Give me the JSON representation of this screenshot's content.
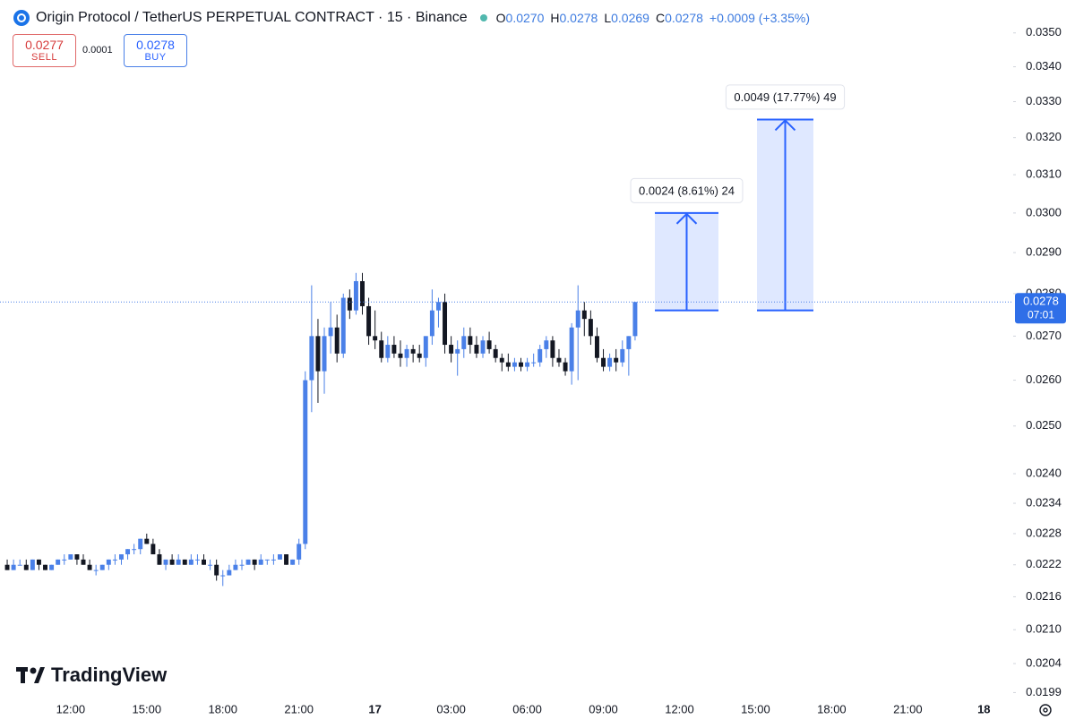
{
  "chart_data": {
    "type": "candlestick",
    "title": "Origin Protocol / TetherUS PERPETUAL CONTRACT · 15 · Binance",
    "legend": [
      {
        "key": "O",
        "value": "0.0270"
      },
      {
        "key": "H",
        "value": "0.0278"
      },
      {
        "key": "L",
        "value": "0.0269"
      },
      {
        "key": "C",
        "value": "0.0278"
      }
    ],
    "change": "+0.0009 (+3.35%)",
    "trade": {
      "sell_price": "0.0277",
      "sell_label": "SELL",
      "spread": "0.0001",
      "buy_price": "0.0278",
      "buy_label": "BUY"
    },
    "watermark": "TradingView",
    "log_scale": true,
    "grid": false,
    "up_color": "#4a80e8",
    "down_color": "#131722",
    "categories": [
      null,
      null,
      null,
      null,
      null,
      null,
      null,
      null,
      null,
      null,
      "12:00",
      null,
      null,
      null,
      null,
      null,
      null,
      null,
      null,
      null,
      null,
      null,
      "15:00",
      null,
      null,
      null,
      null,
      null,
      null,
      null,
      null,
      null,
      null,
      null,
      "18:00",
      null,
      null,
      null,
      null,
      null,
      null,
      null,
      null,
      null,
      null,
      null,
      "21:00",
      null,
      null,
      null,
      null,
      null,
      null,
      null,
      null,
      null,
      null,
      null,
      "17",
      null,
      null,
      null,
      null,
      null,
      null,
      null,
      null,
      null,
      null,
      null,
      "03:00",
      null,
      null,
      null,
      null,
      null,
      null,
      null,
      null,
      null,
      null,
      null,
      "06:00",
      null,
      null,
      null,
      null,
      null,
      null,
      null,
      null,
      null,
      null,
      null,
      "09:00",
      null,
      null,
      null,
      null,
      null,
      null,
      null,
      null,
      null,
      null,
      null,
      "12:00",
      null,
      null,
      null,
      null,
      null,
      null,
      null,
      null,
      null,
      null,
      null,
      "15:00",
      null,
      null,
      null,
      null,
      null,
      null,
      null,
      null,
      null,
      null,
      null,
      "18:00",
      null,
      null,
      null,
      null,
      null,
      null,
      null,
      null,
      null,
      null,
      null,
      "21:00",
      null,
      null,
      null,
      null,
      null,
      null,
      null,
      null,
      null,
      null,
      null,
      "18",
      null,
      null,
      null
    ],
    "open": [
      0.0222,
      0.0221,
      0.0222,
      0.0222,
      0.0221,
      0.0223,
      0.0222,
      0.0221,
      0.0222,
      0.0223,
      0.0223,
      0.0224,
      0.0223,
      0.0222,
      0.0221,
      0.0221,
      0.0222,
      0.0223,
      0.0223,
      0.0224,
      0.0225,
      0.0225,
      0.0227,
      0.0226,
      0.0224,
      0.0222,
      0.0223,
      0.0222,
      0.0223,
      0.0222,
      0.0223,
      0.0223,
      0.0222,
      0.0222,
      0.022,
      0.022,
      0.0221,
      0.0222,
      0.0222,
      0.0223,
      0.0222,
      0.0223,
      0.0223,
      0.0223,
      0.0224,
      0.0222,
      0.0223,
      0.0226,
      0.026,
      0.027,
      0.0262,
      0.027,
      0.0272,
      0.0266,
      0.0279,
      0.0276,
      0.0283,
      0.0277,
      0.027,
      0.0269,
      0.0265,
      0.0268,
      0.0266,
      0.0265,
      0.0267,
      0.0266,
      0.0265,
      0.027,
      0.0276,
      0.0278,
      0.0268,
      0.0266,
      0.0267,
      0.027,
      0.0268,
      0.0266,
      0.0269,
      0.0267,
      0.0265,
      0.0264,
      0.0263,
      0.0264,
      0.0263,
      0.0264,
      0.0264,
      0.0267,
      0.0269,
      0.0265,
      0.0264,
      0.0262,
      0.0272,
      0.0276,
      0.0274,
      0.027,
      0.0265,
      0.0263,
      0.0265,
      0.0264,
      0.0267,
      0.027,
      null,
      null,
      null,
      null,
      null,
      null,
      null,
      null,
      null,
      null,
      null,
      null,
      null,
      null,
      null,
      null,
      null,
      null,
      null,
      null,
      null,
      null,
      null,
      null,
      null,
      null,
      null,
      null,
      null,
      null,
      null,
      null,
      null,
      null,
      null,
      null,
      null,
      null,
      null,
      null,
      null,
      null,
      null,
      null,
      null,
      null,
      null,
      null,
      null,
      null,
      null,
      null,
      null,
      null,
      null,
      null,
      null,
      null
    ],
    "high": [
      0.0223,
      0.0223,
      0.0223,
      0.0223,
      0.0223,
      0.0223,
      0.0222,
      0.0222,
      0.0223,
      0.0224,
      0.0224,
      0.0224,
      0.0224,
      0.0223,
      0.0222,
      0.0222,
      0.0223,
      0.0224,
      0.0224,
      0.0225,
      0.0226,
      0.0227,
      0.0228,
      0.0227,
      0.0225,
      0.0223,
      0.0224,
      0.0224,
      0.0223,
      0.0224,
      0.0224,
      0.0224,
      0.0223,
      0.0223,
      0.0221,
      0.0222,
      0.0223,
      0.0223,
      0.0223,
      0.0223,
      0.0224,
      0.0223,
      0.0224,
      0.0224,
      0.0224,
      0.0223,
      0.0227,
      0.0262,
      0.0282,
      0.0274,
      0.0272,
      0.0278,
      0.0275,
      0.028,
      0.0281,
      0.0285,
      0.0285,
      0.0279,
      0.0276,
      0.0271,
      0.027,
      0.027,
      0.0269,
      0.0268,
      0.0268,
      0.0268,
      0.027,
      0.0281,
      0.0279,
      0.028,
      0.027,
      0.0269,
      0.0272,
      0.0272,
      0.027,
      0.027,
      0.0271,
      0.0268,
      0.0266,
      0.0266,
      0.0265,
      0.0265,
      0.0265,
      0.0266,
      0.0268,
      0.027,
      0.027,
      0.0267,
      0.0265,
      0.0273,
      0.0282,
      0.0278,
      0.0276,
      0.0272,
      0.0267,
      0.0266,
      0.0267,
      0.0269,
      0.027,
      0.0278,
      null,
      null,
      null,
      null,
      null,
      null,
      null,
      null,
      null,
      null,
      null,
      null,
      null,
      null,
      null,
      null,
      null,
      null,
      null,
      null,
      null,
      null,
      null,
      null,
      null,
      null,
      null,
      null,
      null,
      null,
      null,
      null,
      null,
      null,
      null,
      null,
      null,
      null,
      null,
      null,
      null,
      null,
      null,
      null,
      null,
      null,
      null,
      null,
      null,
      null,
      null,
      null,
      null,
      null,
      null,
      null,
      null,
      null
    ],
    "low": [
      0.0221,
      0.0221,
      0.0222,
      0.0221,
      0.0221,
      0.0221,
      0.0221,
      0.0221,
      0.0222,
      0.0222,
      0.0223,
      0.0222,
      0.0222,
      0.0221,
      0.022,
      0.0221,
      0.0221,
      0.0222,
      0.0222,
      0.0223,
      0.0224,
      0.0224,
      0.0226,
      0.0224,
      0.0222,
      0.0221,
      0.0222,
      0.0222,
      0.0222,
      0.0222,
      0.0222,
      0.0222,
      0.0221,
      0.0219,
      0.0218,
      0.022,
      0.0221,
      0.0221,
      0.0222,
      0.0221,
      0.0222,
      0.0222,
      0.0222,
      0.0223,
      0.0222,
      0.0222,
      0.0222,
      0.0225,
      0.0253,
      0.0255,
      0.0257,
      0.0266,
      0.0264,
      0.0265,
      0.0274,
      0.0275,
      0.0275,
      0.0268,
      0.0267,
      0.0264,
      0.0264,
      0.0265,
      0.0263,
      0.0263,
      0.0264,
      0.0264,
      0.0263,
      0.0268,
      0.0272,
      0.0266,
      0.0264,
      0.0261,
      0.0265,
      0.0266,
      0.0265,
      0.0265,
      0.0266,
      0.0264,
      0.0262,
      0.0262,
      0.0262,
      0.0262,
      0.0262,
      0.0263,
      0.0263,
      0.0265,
      0.0263,
      0.0263,
      0.0261,
      0.0259,
      0.026,
      0.027,
      0.0268,
      0.0264,
      0.0262,
      0.0262,
      0.0262,
      0.0263,
      0.0261,
      0.0269,
      null,
      null,
      null,
      null,
      null,
      null,
      null,
      null,
      null,
      null,
      null,
      null,
      null,
      null,
      null,
      null,
      null,
      null,
      null,
      null,
      null,
      null,
      null,
      null,
      null,
      null,
      null,
      null,
      null,
      null,
      null,
      null,
      null,
      null,
      null,
      null,
      null,
      null,
      null,
      null,
      null,
      null,
      null,
      null,
      null,
      null,
      null,
      null,
      null,
      null,
      null,
      null,
      null,
      null,
      null,
      null,
      null,
      null
    ],
    "close": [
      0.0221,
      0.0222,
      0.0222,
      0.0221,
      0.0223,
      0.0222,
      0.0221,
      0.0222,
      0.0223,
      0.0223,
      0.0224,
      0.0223,
      0.0222,
      0.0221,
      0.0221,
      0.0222,
      0.0223,
      0.0223,
      0.0224,
      0.0225,
      0.0225,
      0.0227,
      0.0226,
      0.0224,
      0.0222,
      0.0223,
      0.0222,
      0.0223,
      0.0222,
      0.0223,
      0.0223,
      0.0222,
      0.0222,
      0.022,
      0.022,
      0.0221,
      0.0222,
      0.0222,
      0.0223,
      0.0222,
      0.0223,
      0.0223,
      0.0223,
      0.0224,
      0.0222,
      0.0223,
      0.0226,
      0.026,
      0.027,
      0.0262,
      0.027,
      0.0272,
      0.0266,
      0.0279,
      0.0276,
      0.0283,
      0.0277,
      0.027,
      0.0269,
      0.0265,
      0.0268,
      0.0266,
      0.0265,
      0.0267,
      0.0266,
      0.0265,
      0.027,
      0.0276,
      0.0278,
      0.0268,
      0.0266,
      0.0267,
      0.027,
      0.0268,
      0.0266,
      0.0269,
      0.0267,
      0.0265,
      0.0264,
      0.0263,
      0.0264,
      0.0263,
      0.0264,
      0.0264,
      0.0267,
      0.0269,
      0.0265,
      0.0264,
      0.0262,
      0.0272,
      0.0276,
      0.0274,
      0.027,
      0.0265,
      0.0263,
      0.0265,
      0.0264,
      0.0267,
      0.027,
      0.0278,
      null,
      null,
      null,
      null,
      null,
      null,
      null,
      null,
      null,
      null,
      null,
      null,
      null,
      null,
      null,
      null,
      null,
      null,
      null,
      null,
      null,
      null,
      null,
      null,
      null,
      null,
      null,
      null,
      null,
      null,
      null,
      null,
      null,
      null,
      null,
      null,
      null,
      null,
      null,
      null,
      null,
      null,
      null,
      null,
      null,
      null,
      null,
      null,
      null,
      null,
      null,
      null,
      null,
      null,
      null,
      null,
      null,
      null
    ],
    "ylim": [
      0.0198,
      0.036
    ],
    "yticks": [
      {
        "value": 0.035,
        "label": "0.0350"
      },
      {
        "value": 0.034,
        "label": "0.0340"
      },
      {
        "value": 0.033,
        "label": "0.0330"
      },
      {
        "value": 0.032,
        "label": "0.0320"
      },
      {
        "value": 0.031,
        "label": "0.0310"
      },
      {
        "value": 0.03,
        "label": "0.0300"
      },
      {
        "value": 0.029,
        "label": "0.0290"
      },
      {
        "value": 0.028,
        "label": "0.0280"
      },
      {
        "value": 0.027,
        "label": "0.0270"
      },
      {
        "value": 0.026,
        "label": "0.0260"
      },
      {
        "value": 0.025,
        "label": "0.0250"
      },
      {
        "value": 0.024,
        "label": "0.0240"
      },
      {
        "value": 0.0234,
        "label": "0.0234"
      },
      {
        "value": 0.0228,
        "label": "0.0228"
      },
      {
        "value": 0.0222,
        "label": "0.0222"
      },
      {
        "value": 0.0216,
        "label": "0.0216"
      },
      {
        "value": 0.021,
        "label": "0.0210"
      },
      {
        "value": 0.0204,
        "label": "0.0204"
      },
      {
        "value": 0.0199,
        "label": "0.0199"
      }
    ],
    "last_price": {
      "value": 0.0278,
      "label": "0.0278",
      "countdown": "07:01"
    },
    "measurements": [
      {
        "label": "0.0024 (8.61%) 24",
        "from": 0.0276,
        "to": 0.03
      },
      {
        "label": "0.0049 (17.77%) 49",
        "from": 0.0276,
        "to": 0.0325
      }
    ]
  }
}
